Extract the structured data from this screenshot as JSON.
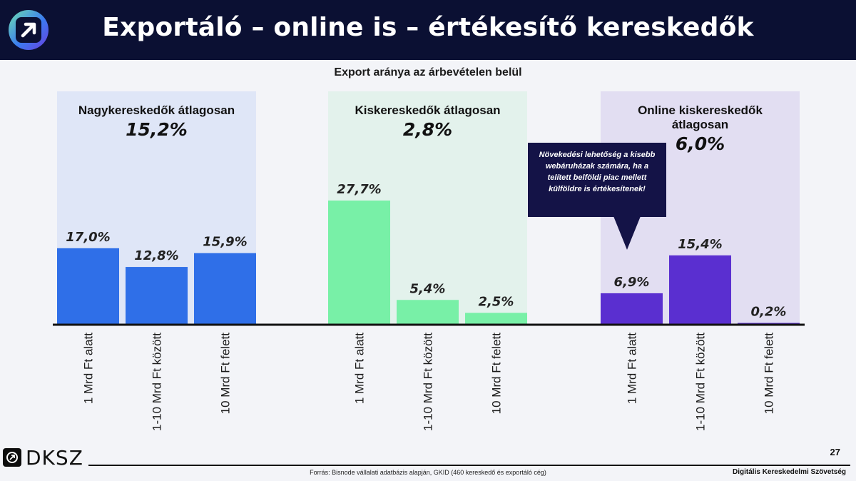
{
  "header": {
    "title": "Exportáló – online is – értékesítő kereskedők"
  },
  "chart_data": {
    "type": "bar",
    "title": "Export aránya az árbevételen belül",
    "unit": "%",
    "categories": [
      "1 Mrd Ft alatt",
      "1-10 Mrd Ft között",
      "10 Mrd Ft felett"
    ],
    "ylim": [
      0,
      30
    ],
    "groups": [
      {
        "label": "Nagykereskedők átlagosan",
        "average": "15,2%",
        "values": [
          17.0,
          12.8,
          15.9
        ],
        "value_labels": [
          "17,0%",
          "12,8%",
          "15,9%"
        ],
        "color": "#2f6fe8",
        "panel_color": "#dfe6f7"
      },
      {
        "label": "Kiskereskedők átlagosan",
        "average": "2,8%",
        "values": [
          27.7,
          5.4,
          2.5
        ],
        "value_labels": [
          "27,7%",
          "5,4%",
          "2,5%"
        ],
        "color": "#78f0a7",
        "panel_color": "#e3f2ec"
      },
      {
        "label": "Online kiskereskedők átlagosan",
        "average": "6,0%",
        "values": [
          6.9,
          15.4,
          0.2
        ],
        "value_labels": [
          "6,9%",
          "15,4%",
          "0,2%"
        ],
        "color": "#5a2fd0",
        "panel_color": "#e2def2"
      }
    ],
    "annotation": "Növekedési lehetőség a kisebb webáruházak számára, ha a telített belföldi piac mellett külföldre is értékesítenek!"
  },
  "footer": {
    "logo_text": "DKSZ",
    "page_number": "27",
    "source": "Forrás: Bisnode vállalati adatbázis alapján, GKID (460 kereskedő és exportáló cég)",
    "organization": "Digitális Kereskedelmi Szövetség"
  }
}
